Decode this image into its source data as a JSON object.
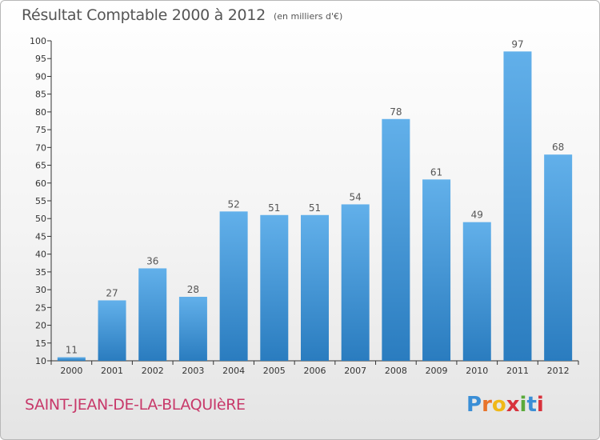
{
  "title": "Résultat Comptable 2000 à 2012",
  "subtitle": "(en milliers d'€)",
  "location": "SAINT-JEAN-DE-LA-BLAQUIèRE",
  "logo": {
    "text": "Proxiti",
    "letter_colors": [
      "#3a8ed6",
      "#e8732a",
      "#f0b818",
      "#d8323c",
      "#5aaa3a",
      "#3a8ed6",
      "#d8323c"
    ]
  },
  "colors": {
    "bar_top": "#62b0ea",
    "bar_bottom": "#2a7cbf",
    "axis": "#333333",
    "grid": "#dddddd",
    "text": "#555555",
    "location_text": "#c8396a"
  },
  "chart_data": {
    "type": "bar",
    "categories": [
      "2000",
      "2001",
      "2002",
      "2003",
      "2004",
      "2005",
      "2006",
      "2007",
      "2008",
      "2009",
      "2010",
      "2011",
      "2012"
    ],
    "values": [
      11,
      27,
      36,
      28,
      52,
      51,
      51,
      54,
      78,
      61,
      49,
      97,
      68
    ],
    "value_labels": [
      "11",
      "27",
      "36",
      "28",
      "52",
      "51",
      "51",
      "54",
      "78",
      "61",
      "49",
      "97",
      "68"
    ],
    "ylim": [
      10,
      100
    ],
    "yticks": [
      10,
      15,
      20,
      25,
      30,
      35,
      40,
      45,
      50,
      55,
      60,
      65,
      70,
      75,
      80,
      85,
      90,
      95,
      100
    ],
    "grid": false,
    "legend": "none"
  }
}
